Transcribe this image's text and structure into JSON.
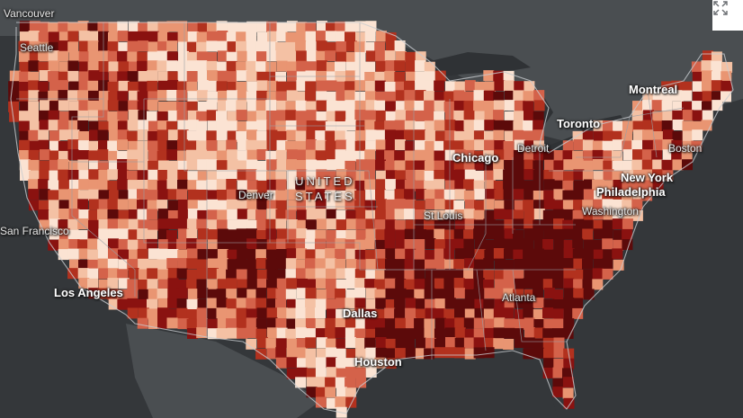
{
  "map": {
    "country_label_line1": "UNITED",
    "country_label_line2": "STATES",
    "cities": [
      {
        "name": "Vancouver",
        "cls": "small"
      },
      {
        "name": "Seattle",
        "cls": "small"
      },
      {
        "name": "San Francisco",
        "cls": "small"
      },
      {
        "name": "Los Angeles",
        "cls": ""
      },
      {
        "name": "Denver",
        "cls": "small"
      },
      {
        "name": "Dallas",
        "cls": ""
      },
      {
        "name": "Houston",
        "cls": ""
      },
      {
        "name": "St Louis",
        "cls": "small"
      },
      {
        "name": "Chicago",
        "cls": ""
      },
      {
        "name": "Detroit",
        "cls": "small"
      },
      {
        "name": "Toronto",
        "cls": ""
      },
      {
        "name": "Montreal",
        "cls": ""
      },
      {
        "name": "Boston",
        "cls": "small"
      },
      {
        "name": "New York",
        "cls": ""
      },
      {
        "name": "Philadelphia",
        "cls": ""
      },
      {
        "name": "Washington",
        "cls": "small"
      },
      {
        "name": "Atlanta",
        "cls": "small"
      }
    ],
    "palette": [
      "#fbe3d3",
      "#f4c1a4",
      "#e99572",
      "#d4624a",
      "#b2311e",
      "#8a1210",
      "#5c0a0a"
    ],
    "land_color": "#4a4e51",
    "water_color": "#2f3235",
    "expand_icon": "expand-icon"
  }
}
